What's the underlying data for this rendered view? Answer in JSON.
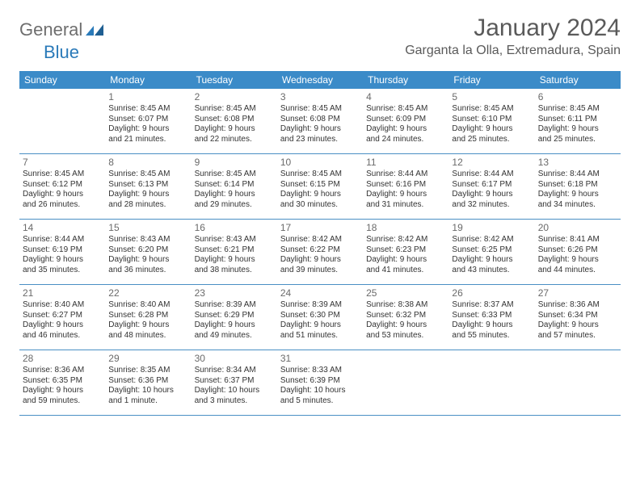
{
  "colors": {
    "header_bg": "#3b8bc8",
    "header_text": "#ffffff",
    "rule": "#4a8fc4",
    "body_text": "#333333",
    "muted_text": "#6a6a6a",
    "logo_gray": "#6e6e6e",
    "logo_blue": "#2a7ab9"
  },
  "logo": {
    "part1": "General",
    "part2": "Blue"
  },
  "title": "January 2024",
  "location": "Garganta la Olla, Extremadura, Spain",
  "days_of_week": [
    "Sunday",
    "Monday",
    "Tuesday",
    "Wednesday",
    "Thursday",
    "Friday",
    "Saturday"
  ],
  "weeks": [
    [
      null,
      {
        "n": "1",
        "sr": "Sunrise: 8:45 AM",
        "ss": "Sunset: 6:07 PM",
        "d1": "Daylight: 9 hours",
        "d2": "and 21 minutes."
      },
      {
        "n": "2",
        "sr": "Sunrise: 8:45 AM",
        "ss": "Sunset: 6:08 PM",
        "d1": "Daylight: 9 hours",
        "d2": "and 22 minutes."
      },
      {
        "n": "3",
        "sr": "Sunrise: 8:45 AM",
        "ss": "Sunset: 6:08 PM",
        "d1": "Daylight: 9 hours",
        "d2": "and 23 minutes."
      },
      {
        "n": "4",
        "sr": "Sunrise: 8:45 AM",
        "ss": "Sunset: 6:09 PM",
        "d1": "Daylight: 9 hours",
        "d2": "and 24 minutes."
      },
      {
        "n": "5",
        "sr": "Sunrise: 8:45 AM",
        "ss": "Sunset: 6:10 PM",
        "d1": "Daylight: 9 hours",
        "d2": "and 25 minutes."
      },
      {
        "n": "6",
        "sr": "Sunrise: 8:45 AM",
        "ss": "Sunset: 6:11 PM",
        "d1": "Daylight: 9 hours",
        "d2": "and 25 minutes."
      }
    ],
    [
      {
        "n": "7",
        "sr": "Sunrise: 8:45 AM",
        "ss": "Sunset: 6:12 PM",
        "d1": "Daylight: 9 hours",
        "d2": "and 26 minutes."
      },
      {
        "n": "8",
        "sr": "Sunrise: 8:45 AM",
        "ss": "Sunset: 6:13 PM",
        "d1": "Daylight: 9 hours",
        "d2": "and 28 minutes."
      },
      {
        "n": "9",
        "sr": "Sunrise: 8:45 AM",
        "ss": "Sunset: 6:14 PM",
        "d1": "Daylight: 9 hours",
        "d2": "and 29 minutes."
      },
      {
        "n": "10",
        "sr": "Sunrise: 8:45 AM",
        "ss": "Sunset: 6:15 PM",
        "d1": "Daylight: 9 hours",
        "d2": "and 30 minutes."
      },
      {
        "n": "11",
        "sr": "Sunrise: 8:44 AM",
        "ss": "Sunset: 6:16 PM",
        "d1": "Daylight: 9 hours",
        "d2": "and 31 minutes."
      },
      {
        "n": "12",
        "sr": "Sunrise: 8:44 AM",
        "ss": "Sunset: 6:17 PM",
        "d1": "Daylight: 9 hours",
        "d2": "and 32 minutes."
      },
      {
        "n": "13",
        "sr": "Sunrise: 8:44 AM",
        "ss": "Sunset: 6:18 PM",
        "d1": "Daylight: 9 hours",
        "d2": "and 34 minutes."
      }
    ],
    [
      {
        "n": "14",
        "sr": "Sunrise: 8:44 AM",
        "ss": "Sunset: 6:19 PM",
        "d1": "Daylight: 9 hours",
        "d2": "and 35 minutes."
      },
      {
        "n": "15",
        "sr": "Sunrise: 8:43 AM",
        "ss": "Sunset: 6:20 PM",
        "d1": "Daylight: 9 hours",
        "d2": "and 36 minutes."
      },
      {
        "n": "16",
        "sr": "Sunrise: 8:43 AM",
        "ss": "Sunset: 6:21 PM",
        "d1": "Daylight: 9 hours",
        "d2": "and 38 minutes."
      },
      {
        "n": "17",
        "sr": "Sunrise: 8:42 AM",
        "ss": "Sunset: 6:22 PM",
        "d1": "Daylight: 9 hours",
        "d2": "and 39 minutes."
      },
      {
        "n": "18",
        "sr": "Sunrise: 8:42 AM",
        "ss": "Sunset: 6:23 PM",
        "d1": "Daylight: 9 hours",
        "d2": "and 41 minutes."
      },
      {
        "n": "19",
        "sr": "Sunrise: 8:42 AM",
        "ss": "Sunset: 6:25 PM",
        "d1": "Daylight: 9 hours",
        "d2": "and 43 minutes."
      },
      {
        "n": "20",
        "sr": "Sunrise: 8:41 AM",
        "ss": "Sunset: 6:26 PM",
        "d1": "Daylight: 9 hours",
        "d2": "and 44 minutes."
      }
    ],
    [
      {
        "n": "21",
        "sr": "Sunrise: 8:40 AM",
        "ss": "Sunset: 6:27 PM",
        "d1": "Daylight: 9 hours",
        "d2": "and 46 minutes."
      },
      {
        "n": "22",
        "sr": "Sunrise: 8:40 AM",
        "ss": "Sunset: 6:28 PM",
        "d1": "Daylight: 9 hours",
        "d2": "and 48 minutes."
      },
      {
        "n": "23",
        "sr": "Sunrise: 8:39 AM",
        "ss": "Sunset: 6:29 PM",
        "d1": "Daylight: 9 hours",
        "d2": "and 49 minutes."
      },
      {
        "n": "24",
        "sr": "Sunrise: 8:39 AM",
        "ss": "Sunset: 6:30 PM",
        "d1": "Daylight: 9 hours",
        "d2": "and 51 minutes."
      },
      {
        "n": "25",
        "sr": "Sunrise: 8:38 AM",
        "ss": "Sunset: 6:32 PM",
        "d1": "Daylight: 9 hours",
        "d2": "and 53 minutes."
      },
      {
        "n": "26",
        "sr": "Sunrise: 8:37 AM",
        "ss": "Sunset: 6:33 PM",
        "d1": "Daylight: 9 hours",
        "d2": "and 55 minutes."
      },
      {
        "n": "27",
        "sr": "Sunrise: 8:36 AM",
        "ss": "Sunset: 6:34 PM",
        "d1": "Daylight: 9 hours",
        "d2": "and 57 minutes."
      }
    ],
    [
      {
        "n": "28",
        "sr": "Sunrise: 8:36 AM",
        "ss": "Sunset: 6:35 PM",
        "d1": "Daylight: 9 hours",
        "d2": "and 59 minutes."
      },
      {
        "n": "29",
        "sr": "Sunrise: 8:35 AM",
        "ss": "Sunset: 6:36 PM",
        "d1": "Daylight: 10 hours",
        "d2": "and 1 minute."
      },
      {
        "n": "30",
        "sr": "Sunrise: 8:34 AM",
        "ss": "Sunset: 6:37 PM",
        "d1": "Daylight: 10 hours",
        "d2": "and 3 minutes."
      },
      {
        "n": "31",
        "sr": "Sunrise: 8:33 AM",
        "ss": "Sunset: 6:39 PM",
        "d1": "Daylight: 10 hours",
        "d2": "and 5 minutes."
      },
      null,
      null,
      null
    ]
  ]
}
